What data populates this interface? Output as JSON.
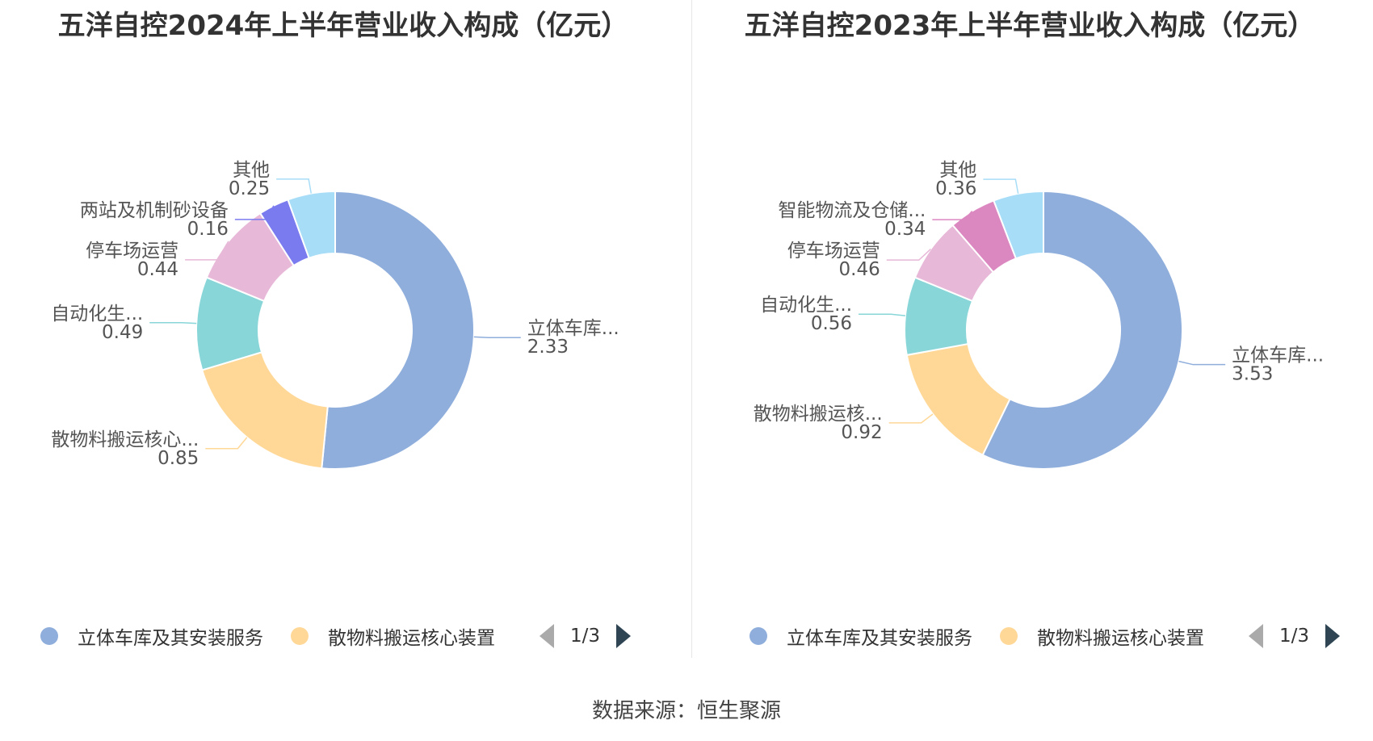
{
  "chart_data": [
    {
      "type": "pie",
      "title": "五洋自控2024年上半年营业收入构成（亿元）",
      "slices": [
        {
          "name": "立体车库及其安装服务",
          "label": "立体车库...",
          "value": 2.33,
          "color": "#8FAEDC"
        },
        {
          "name": "散物料搬运核心装置",
          "label": "散物料搬运核心...",
          "value": 0.85,
          "color": "#FFD898"
        },
        {
          "name": "自动化生...",
          "label": "自动化生...",
          "value": 0.49,
          "color": "#88D6D8"
        },
        {
          "name": "停车场运营",
          "label": "停车场运营",
          "value": 0.44,
          "color": "#E8B8D8"
        },
        {
          "name": "两站及机制砂设备",
          "label": "两站及机制砂设备",
          "value": 0.16,
          "color": "#7B7BF0"
        },
        {
          "name": "其他",
          "label": "其他",
          "value": 0.25,
          "color": "#A8DDF8"
        }
      ],
      "legend": {
        "items": [
          "立体车库及其安装服务",
          "散物料搬运核心装置"
        ],
        "page": "1/3"
      }
    },
    {
      "type": "pie",
      "title": "五洋自控2023年上半年营业收入构成（亿元）",
      "slices": [
        {
          "name": "立体车库及其安装服务",
          "label": "立体车库...",
          "value": 3.53,
          "color": "#8FAEDC"
        },
        {
          "name": "散物料搬运核心装置",
          "label": "散物料搬运核...",
          "value": 0.92,
          "color": "#FFD898"
        },
        {
          "name": "自动化生...",
          "label": "自动化生...",
          "value": 0.56,
          "color": "#88D6D8"
        },
        {
          "name": "停车场运营",
          "label": "停车场运营",
          "value": 0.46,
          "color": "#E8B8D8"
        },
        {
          "name": "智能物流及仓储...",
          "label": "智能物流及仓储...",
          "value": 0.34,
          "color": "#DC88C0"
        },
        {
          "name": "其他",
          "label": "其他",
          "value": 0.36,
          "color": "#A8DDF8"
        }
      ],
      "legend": {
        "items": [
          "立体车库及其安装服务",
          "散物料搬运核心装置"
        ],
        "page": "1/3"
      }
    }
  ],
  "source": "数据来源：恒生聚源"
}
